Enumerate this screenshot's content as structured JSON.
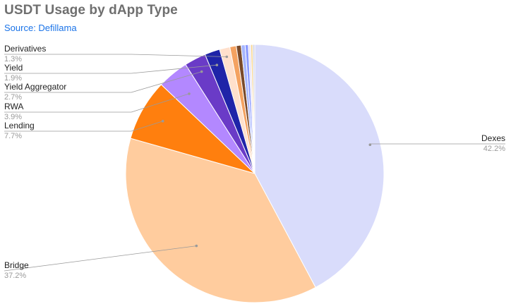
{
  "header": {
    "title": "USDT Usage by dApp Type",
    "subtitle": "Source: Defillama"
  },
  "colors": {
    "title": "#6f6f6f",
    "subtitle": "#1a73e8",
    "leader": "#9a9a9a"
  },
  "chart_data": {
    "type": "pie",
    "title": "USDT Usage by dApp Type",
    "subtitle": "Source: Defillama",
    "slices": [
      {
        "label": "Dexes",
        "value": 42.2,
        "display": "42.2%",
        "color": "#d9dcfb",
        "labeled": true
      },
      {
        "label": "Bridge",
        "value": 37.2,
        "display": "37.2%",
        "color": "#ffcc9e",
        "labeled": true
      },
      {
        "label": "Lending",
        "value": 7.7,
        "display": "7.7%",
        "color": "#ff7f0e",
        "labeled": true
      },
      {
        "label": "RWA",
        "value": 3.9,
        "display": "3.9%",
        "color": "#b388ff",
        "labeled": true
      },
      {
        "label": "Yield Aggregator",
        "value": 2.7,
        "display": "2.7%",
        "color": "#6a3bc7",
        "labeled": true
      },
      {
        "label": "Yield",
        "value": 1.9,
        "display": "1.9%",
        "color": "#1f24a8",
        "labeled": true
      },
      {
        "label": "Derivatives",
        "value": 1.3,
        "display": "1.3%",
        "color": "#ffe0cc",
        "labeled": true
      },
      {
        "label": "",
        "value": 0.8,
        "display": "",
        "color": "#f4a261",
        "labeled": false
      },
      {
        "label": "",
        "value": 0.6,
        "display": "",
        "color": "#7a4a2a",
        "labeled": false
      },
      {
        "label": "",
        "value": 0.5,
        "display": "",
        "color": "#a7b6ff",
        "labeled": false
      },
      {
        "label": "",
        "value": 0.4,
        "display": "",
        "color": "#8c9bff",
        "labeled": false
      },
      {
        "label": "",
        "value": 0.3,
        "display": "",
        "color": "#e8e2f6",
        "labeled": false
      },
      {
        "label": "",
        "value": 0.25,
        "display": "",
        "color": "#f6d38c",
        "labeled": false
      },
      {
        "label": "",
        "value": 0.25,
        "display": "",
        "color": "#cfd3e6",
        "labeled": false
      }
    ],
    "start_angle": "12 o'clock",
    "direction": "clockwise",
    "legend": "none (leader-line labels)"
  }
}
